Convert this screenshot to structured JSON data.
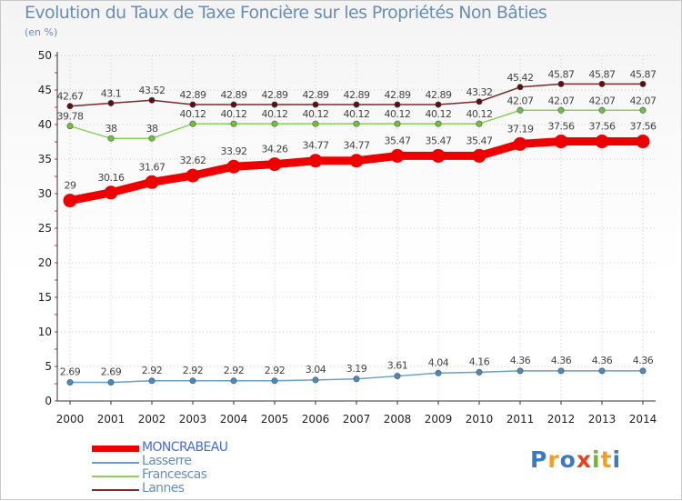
{
  "chart_data": {
    "type": "line",
    "title": "Evolution du Taux de Taxe Foncière sur les Propriétés Non Bâties",
    "subtitle": "(en %)",
    "xlabel": "",
    "ylabel": "(en %)",
    "ylim": [
      0,
      50
    ],
    "yticks": [
      "0",
      "5",
      "10",
      "15",
      "20",
      "25",
      "30",
      "35",
      "40",
      "45",
      "50"
    ],
    "categories": [
      "2000",
      "2001",
      "2002",
      "2003",
      "2004",
      "2005",
      "2006",
      "2007",
      "2008",
      "2009",
      "2010",
      "2011",
      "2012",
      "2013",
      "2014"
    ],
    "legend_position": "bottom-left",
    "series": [
      {
        "name": "Lannes",
        "color": "#7a2a2a",
        "marker": "#5a1010",
        "values": [
          42.67,
          43.1,
          43.52,
          42.89,
          42.89,
          42.89,
          42.89,
          42.89,
          42.89,
          42.89,
          43.32,
          45.42,
          45.87,
          45.87,
          45.87
        ],
        "labels": [
          "42.67",
          "43.1",
          "43.52",
          "42.89",
          "42.89",
          "42.89",
          "42.89",
          "42.89",
          "42.89",
          "42.89",
          "43.32",
          "45.42",
          "45.87",
          "45.87",
          "45.87"
        ]
      },
      {
        "name": "Francescas",
        "color": "#8ccf5a",
        "marker": "#70c040",
        "values": [
          39.78,
          38,
          38,
          40.12,
          40.12,
          40.12,
          40.12,
          40.12,
          40.12,
          40.12,
          40.12,
          42.07,
          42.07,
          42.07,
          42.07
        ],
        "labels": [
          "39.78",
          "38",
          "38",
          "40.12",
          "40.12",
          "40.12",
          "40.12",
          "40.12",
          "40.12",
          "40.12",
          "40.12",
          "42.07",
          "42.07",
          "42.07",
          "42.07"
        ]
      },
      {
        "name": "MONCRABEAU",
        "color": "#ee0000",
        "marker": "#ee0000",
        "values": [
          29,
          30.16,
          31.67,
          32.62,
          33.92,
          34.26,
          34.77,
          34.77,
          35.47,
          35.47,
          35.47,
          37.19,
          37.56,
          37.56,
          37.56
        ],
        "labels": [
          "29",
          "30.16",
          "31.67",
          "32.62",
          "33.92",
          "34.26",
          "34.77",
          "34.77",
          "35.47",
          "35.47",
          "35.47",
          "37.19",
          "37.56",
          "37.56",
          "37.56"
        ]
      },
      {
        "name": "Lasserre",
        "color": "#6a9fc8",
        "marker": "#4a88c0",
        "values": [
          2.69,
          2.69,
          2.92,
          2.92,
          2.92,
          2.92,
          3.04,
          3.19,
          3.61,
          4.04,
          4.16,
          4.36,
          4.36,
          4.36,
          4.36
        ],
        "labels": [
          "2.69",
          "2.69",
          "2.92",
          "2.92",
          "2.92",
          "2.92",
          "3.04",
          "3.19",
          "3.61",
          "4.04",
          "4.16",
          "4.36",
          "4.36",
          "4.36",
          "4.36"
        ]
      }
    ]
  },
  "legend": [
    {
      "label": "MONCRABEAU",
      "color": "#ee0000",
      "text_color": "#4a6ae0",
      "thick": true
    },
    {
      "label": "Lasserre",
      "color": "#6a9fc8",
      "text_color": "#6a8db8",
      "thick": false
    },
    {
      "label": "Francescas",
      "color": "#8ccf5a",
      "text_color": "#6a8db8",
      "thick": false
    },
    {
      "label": "Lannes",
      "color": "#7a2a2a",
      "text_color": "#6a8db8",
      "thick": false
    }
  ],
  "logo": {
    "letters": [
      "P",
      "r",
      "o",
      "x",
      "i",
      "t",
      "i"
    ],
    "colors": [
      "#3a78c8",
      "#f0a020",
      "#3a78c8",
      "#e84020",
      "#70b830",
      "#f0a020",
      "#3a78c8"
    ]
  }
}
